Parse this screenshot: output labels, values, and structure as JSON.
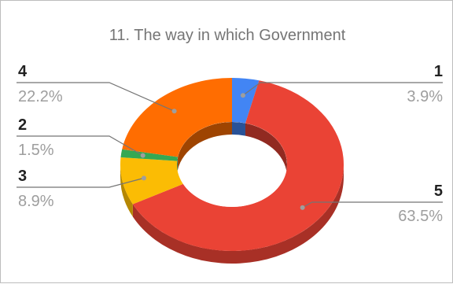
{
  "chart_data": {
    "type": "pie",
    "subtype": "3d-donut",
    "title": "11. The way in which Government",
    "slices": [
      {
        "label": "1",
        "percent_label": "3.9%",
        "value": 3.9,
        "color": "#4285f4"
      },
      {
        "label": "5",
        "percent_label": "63.5%",
        "value": 63.5,
        "color": "#ea4335"
      },
      {
        "label": "3",
        "percent_label": "8.9%",
        "value": 8.9,
        "color": "#fbbc04"
      },
      {
        "label": "2",
        "percent_label": "1.5%",
        "value": 1.5,
        "color": "#34a853"
      },
      {
        "label": "4",
        "percent_label": "22.2%",
        "value": 22.2,
        "color": "#ff6d01"
      }
    ],
    "legend": "none",
    "labels": "outside-with-leader-lines"
  }
}
